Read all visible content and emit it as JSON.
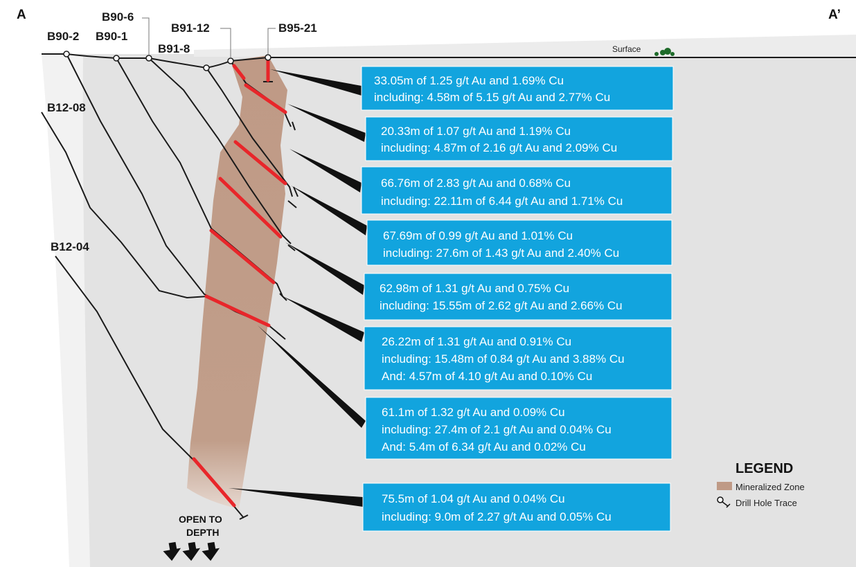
{
  "section": {
    "start_label": "A",
    "end_label": "A’",
    "surface_label": "Surface"
  },
  "drill_holes": [
    "B90-2",
    "B90-1",
    "B90-6",
    "B91-8",
    "B91-12",
    "B95-21",
    "B12-08",
    "B12-04"
  ],
  "intercepts": [
    {
      "lines": [
        "33.05m of 1.25 g/t Au and 1.69% Cu",
        "including: 4.58m of 5.15 g/t Au and 2.77% Cu"
      ]
    },
    {
      "lines": [
        "20.33m of 1.07 g/t Au and 1.19% Cu",
        "including: 4.87m of 2.16 g/t Au and 2.09% Cu"
      ]
    },
    {
      "lines": [
        "66.76m of 2.83 g/t Au and 0.68% Cu",
        "including: 22.11m of 6.44 g/t Au and 1.71% Cu"
      ]
    },
    {
      "lines": [
        "67.69m of 0.99 g/t Au and 1.01% Cu",
        "including: 27.6m of 1.43 g/t Au and 2.40% Cu"
      ]
    },
    {
      "lines": [
        "62.98m of 1.31 g/t Au and 0.75% Cu",
        "including: 15.55m of 2.62 g/t Au and 2.66% Cu"
      ]
    },
    {
      "lines": [
        "26.22m of 1.31 g/t Au and 0.91% Cu",
        "including: 15.48m of 0.84 g/t Au and 3.88% Cu",
        "And: 4.57m of 4.10 g/t Au and 0.10% Cu"
      ]
    },
    {
      "lines": [
        "61.1m of 1.32 g/t Au and 0.09% Cu",
        "including: 27.4m of 2.1 g/t Au and 0.04% Cu",
        "And: 5.4m of 6.34 g/t Au and 0.02% Cu"
      ]
    },
    {
      "lines": [
        "75.5m of 1.04 g/t Au and 0.04% Cu",
        "including: 9.0m of 2.27 g/t Au and 0.05% Cu"
      ]
    }
  ],
  "open_to_depth": [
    "OPEN TO",
    "DEPTH"
  ],
  "legend": {
    "title": "LEGEND",
    "items": [
      "Mineralized Zone",
      "Drill Hole Trace"
    ]
  },
  "colors": {
    "box": "#12a4de",
    "zone": "#bf9a86",
    "intercept": "#e8262a",
    "background": "#e4e4e4"
  }
}
